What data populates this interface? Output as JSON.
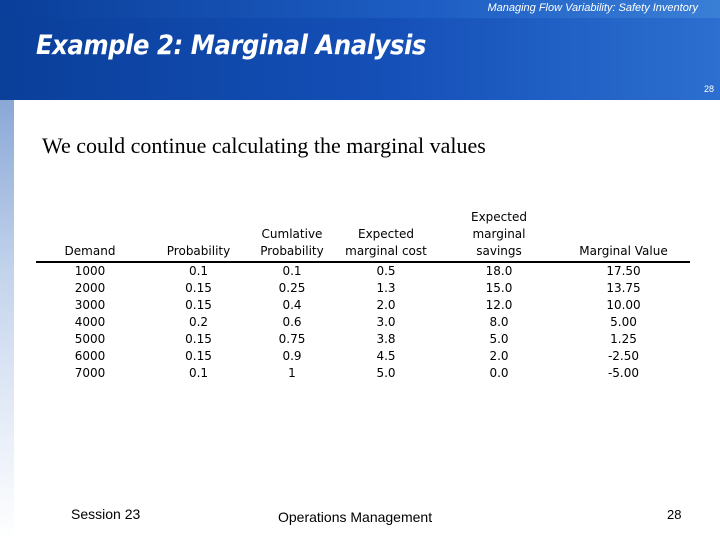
{
  "header": {
    "subtitle": "Managing Flow Variability:  Safety Inventory",
    "title": "Example 2: Marginal Analysis",
    "page_small": "28"
  },
  "body": {
    "intro": "We could continue calculating the marginal values"
  },
  "table": {
    "headers": [
      {
        "line1": "",
        "line2": "Demand"
      },
      {
        "line1": "",
        "line2": "Probability"
      },
      {
        "line1": "Cumlative",
        "line2": "Probability"
      },
      {
        "line1": "Expected",
        "line2": "marginal cost"
      },
      {
        "line1": "Expected marginal",
        "line2": "savings"
      },
      {
        "line1": "",
        "line2": "Marginal Value"
      }
    ],
    "rows": [
      [
        "1000",
        "0.1",
        "0.1",
        "0.5",
        "18.0",
        "17.50"
      ],
      [
        "2000",
        "0.15",
        "0.25",
        "1.3",
        "15.0",
        "13.75"
      ],
      [
        "3000",
        "0.15",
        "0.4",
        "2.0",
        "12.0",
        "10.00"
      ],
      [
        "4000",
        "0.2",
        "0.6",
        "3.0",
        "8.0",
        "5.00"
      ],
      [
        "5000",
        "0.15",
        "0.75",
        "3.8",
        "5.0",
        "1.25"
      ],
      [
        "6000",
        "0.15",
        "0.9",
        "4.5",
        "2.0",
        "-2.50"
      ],
      [
        "7000",
        "0.1",
        "1",
        "5.0",
        "0.0",
        "-5.00"
      ]
    ]
  },
  "footer": {
    "session": "Session 23",
    "course": "Operations Management",
    "page": "28"
  },
  "colors": {
    "banner": "#1550b8",
    "text": "#000000"
  }
}
